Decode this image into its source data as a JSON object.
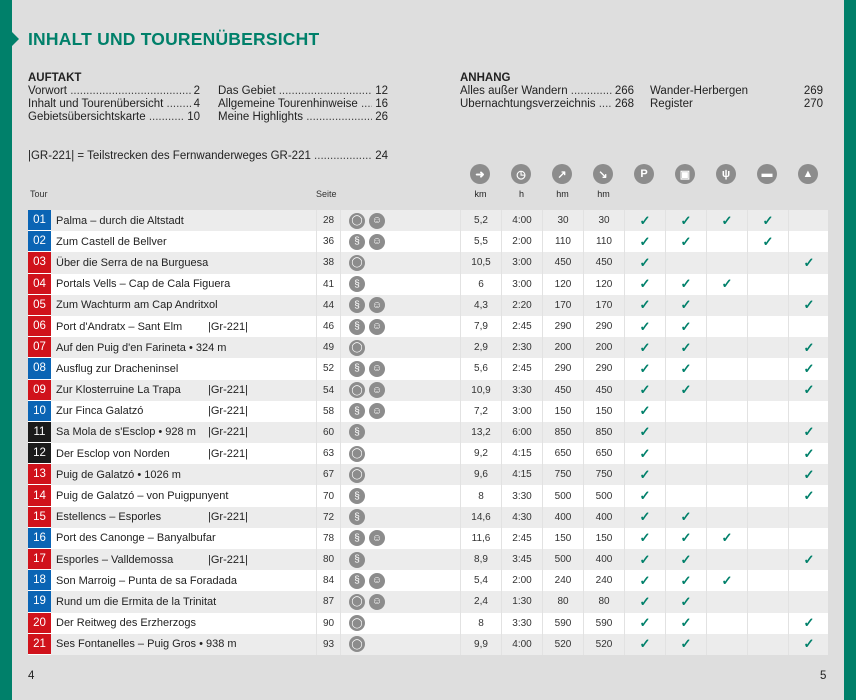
{
  "title": "INHALT UND TOURENÜBERSICHT",
  "auftakt": {
    "heading": "AUFTAKT",
    "col1": [
      {
        "label": "Vorwort",
        "page": "2"
      },
      {
        "label": "Inhalt und Tourenübersicht",
        "page": "4"
      },
      {
        "label": "Gebietsübersichtskarte",
        "page": "10"
      }
    ],
    "col2": [
      {
        "label": "Das Gebiet",
        "page": "12"
      },
      {
        "label": "Allgemeine Tourenhinweise",
        "page": "16"
      },
      {
        "label": "Meine Highlights",
        "page": "26"
      }
    ]
  },
  "anhang": {
    "heading": "ANHANG",
    "col1": [
      {
        "label": "Alles außer Wandern",
        "page": "266"
      },
      {
        "label": "Übernachtungsverzeichnis",
        "page": "268"
      }
    ],
    "col2": [
      {
        "label": "Wander-Herbergen",
        "page": "269"
      },
      {
        "label": "Register",
        "page": "270"
      }
    ]
  },
  "gr_note": {
    "label": "|GR-221| = Teilstrecken des Fernwanderweges GR-221",
    "page": "24"
  },
  "headers": {
    "tour": "Tour",
    "seite": "Seite",
    "km": "km",
    "h": "h",
    "up": "hm",
    "down": "hm"
  },
  "header_icons": [
    "signpost-icon",
    "clock-icon",
    "ascent-icon",
    "descent-icon",
    "parking-icon",
    "bus-icon",
    "restaurant-icon",
    "bed-icon",
    "summit-icon"
  ],
  "colors": {
    "accent": "#00806a",
    "blue": "#0a64b4",
    "red": "#d0121b",
    "black": "#1a1a1a"
  },
  "tours": [
    {
      "nr": "01",
      "color": "blue",
      "name": "Palma – durch die Altstadt",
      "gr": "",
      "page": "28",
      "type": "loop",
      "kids": true,
      "km": "5,2",
      "h": "4:00",
      "up": "30",
      "down": "30",
      "checks": [
        1,
        1,
        1,
        1,
        0
      ]
    },
    {
      "nr": "02",
      "color": "blue",
      "name": "Zum Castell de Bellver",
      "gr": "",
      "page": "36",
      "type": "linear",
      "kids": true,
      "km": "5,5",
      "h": "2:00",
      "up": "110",
      "down": "110",
      "checks": [
        1,
        1,
        0,
        1,
        0
      ]
    },
    {
      "nr": "03",
      "color": "red",
      "name": "Über die Serra de na Burguesa",
      "gr": "",
      "page": "38",
      "type": "loop",
      "kids": false,
      "km": "10,5",
      "h": "3:00",
      "up": "450",
      "down": "450",
      "checks": [
        1,
        0,
        0,
        0,
        1
      ]
    },
    {
      "nr": "04",
      "color": "red",
      "name": "Portals Vells – Cap de Cala Figuera",
      "gr": "",
      "page": "41",
      "type": "linear",
      "kids": false,
      "km": "6",
      "h": "3:00",
      "up": "120",
      "down": "120",
      "checks": [
        1,
        1,
        1,
        0,
        0
      ]
    },
    {
      "nr": "05",
      "color": "red",
      "name": "Zum Wachturm am Cap Andritxol",
      "gr": "",
      "page": "44",
      "type": "linear",
      "kids": true,
      "km": "4,3",
      "h": "2:20",
      "up": "170",
      "down": "170",
      "checks": [
        1,
        1,
        0,
        0,
        1
      ]
    },
    {
      "nr": "06",
      "color": "red",
      "name": "Port d'Andratx – Sant Elm",
      "gr": "|Gr-221|",
      "page": "46",
      "type": "linear",
      "kids": true,
      "km": "7,9",
      "h": "2:45",
      "up": "290",
      "down": "290",
      "checks": [
        1,
        1,
        0,
        0,
        0
      ]
    },
    {
      "nr": "07",
      "color": "red",
      "name": "Auf den Puig d'en Farineta • 324 m",
      "gr": "",
      "page": "49",
      "type": "loop",
      "kids": false,
      "km": "2,9",
      "h": "2:30",
      "up": "200",
      "down": "200",
      "checks": [
        1,
        1,
        0,
        0,
        1
      ]
    },
    {
      "nr": "08",
      "color": "blue",
      "name": "Ausflug zur Dracheninsel",
      "gr": "",
      "page": "52",
      "type": "linear",
      "kids": true,
      "km": "5,6",
      "h": "2:45",
      "up": "290",
      "down": "290",
      "checks": [
        1,
        1,
        0,
        0,
        1
      ]
    },
    {
      "nr": "09",
      "color": "red",
      "name": "Zur Klosterruine La Trapa",
      "gr": "|Gr-221|",
      "page": "54",
      "type": "loop",
      "kids": true,
      "km": "10,9",
      "h": "3:30",
      "up": "450",
      "down": "450",
      "checks": [
        1,
        1,
        0,
        0,
        1
      ]
    },
    {
      "nr": "10",
      "color": "blue",
      "name": "Zur Finca Galatzó",
      "gr": "|Gr-221|",
      "page": "58",
      "type": "linear",
      "kids": true,
      "km": "7,2",
      "h": "3:00",
      "up": "150",
      "down": "150",
      "checks": [
        1,
        0,
        0,
        0,
        0
      ]
    },
    {
      "nr": "11",
      "color": "black",
      "name": "Sa Mola de s'Esclop • 928 m",
      "gr": "|Gr-221|",
      "page": "60",
      "type": "linear",
      "kids": false,
      "km": "13,2",
      "h": "6:00",
      "up": "850",
      "down": "850",
      "checks": [
        1,
        0,
        0,
        0,
        1
      ]
    },
    {
      "nr": "12",
      "color": "black",
      "name": "Der Esclop von Norden",
      "gr": "|Gr-221|",
      "page": "63",
      "type": "loop",
      "kids": false,
      "km": "9,2",
      "h": "4:15",
      "up": "650",
      "down": "650",
      "checks": [
        1,
        0,
        0,
        0,
        1
      ]
    },
    {
      "nr": "13",
      "color": "red",
      "name": "Puig de Galatzó • 1026 m",
      "gr": "",
      "page": "67",
      "type": "loop",
      "kids": false,
      "km": "9,6",
      "h": "4:15",
      "up": "750",
      "down": "750",
      "checks": [
        1,
        0,
        0,
        0,
        1
      ]
    },
    {
      "nr": "14",
      "color": "red",
      "name": "Puig de Galatzó – von Puigpunyent",
      "gr": "",
      "page": "70",
      "type": "linear",
      "kids": false,
      "km": "8",
      "h": "3:30",
      "up": "500",
      "down": "500",
      "checks": [
        1,
        0,
        0,
        0,
        1
      ]
    },
    {
      "nr": "15",
      "color": "red",
      "name": "Estellencs – Esporles",
      "gr": "|Gr-221|",
      "page": "72",
      "type": "linear",
      "kids": false,
      "km": "14,6",
      "h": "4:30",
      "up": "400",
      "down": "400",
      "checks": [
        1,
        1,
        0,
        0,
        0
      ]
    },
    {
      "nr": "16",
      "color": "blue",
      "name": "Port des Canonge – Banyalbufar",
      "gr": "",
      "page": "78",
      "type": "linear",
      "kids": true,
      "km": "11,6",
      "h": "2:45",
      "up": "150",
      "down": "150",
      "checks": [
        1,
        1,
        1,
        0,
        0
      ]
    },
    {
      "nr": "17",
      "color": "red",
      "name": "Esporles – Valldemossa",
      "gr": "|Gr-221|",
      "page": "80",
      "type": "linear",
      "kids": false,
      "km": "8,9",
      "h": "3:45",
      "up": "500",
      "down": "400",
      "checks": [
        1,
        1,
        0,
        0,
        1
      ]
    },
    {
      "nr": "18",
      "color": "blue",
      "name": "Son Marroig – Punta de sa Foradada",
      "gr": "",
      "page": "84",
      "type": "linear",
      "kids": true,
      "km": "5,4",
      "h": "2:00",
      "up": "240",
      "down": "240",
      "checks": [
        1,
        1,
        1,
        0,
        0
      ]
    },
    {
      "nr": "19",
      "color": "blue",
      "name": "Rund um die Ermita de la Trinitat",
      "gr": "",
      "page": "87",
      "type": "loop",
      "kids": true,
      "km": "2,4",
      "h": "1:30",
      "up": "80",
      "down": "80",
      "checks": [
        1,
        1,
        0,
        0,
        0
      ]
    },
    {
      "nr": "20",
      "color": "red",
      "name": "Der Reitweg des Erzherzogs",
      "gr": "",
      "page": "90",
      "type": "loop",
      "kids": false,
      "km": "8",
      "h": "3:30",
      "up": "590",
      "down": "590",
      "checks": [
        1,
        1,
        0,
        0,
        1
      ]
    },
    {
      "nr": "21",
      "color": "red",
      "name": "Ses Fontanelles – Puig Gros • 938 m",
      "gr": "",
      "page": "93",
      "type": "loop",
      "kids": false,
      "km": "9,9",
      "h": "4:00",
      "up": "520",
      "down": "520",
      "checks": [
        1,
        1,
        0,
        0,
        1
      ]
    }
  ],
  "page_left": "4",
  "page_right": "5"
}
